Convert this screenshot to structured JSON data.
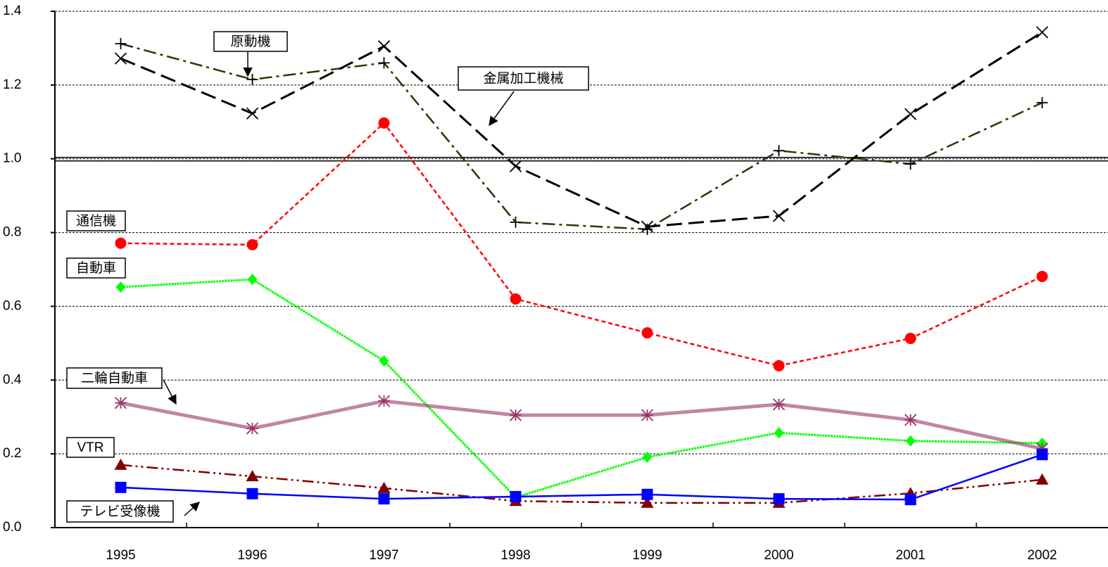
{
  "chart_data": {
    "type": "line",
    "categories": [
      "1995",
      "1996",
      "1997",
      "1998",
      "1999",
      "2000",
      "2001",
      "2002"
    ],
    "series": [
      {
        "name": "原動機",
        "color": "#333300",
        "values": [
          1.312,
          1.215,
          1.26,
          0.828,
          0.809,
          1.022,
          0.986,
          1.152
        ]
      },
      {
        "name": "金属加工機械",
        "color": "#000000",
        "values": [
          1.272,
          1.123,
          1.305,
          0.98,
          0.816,
          0.845,
          1.121,
          1.343
        ]
      },
      {
        "name": "通信機",
        "color": "#ff0000",
        "values": [
          0.771,
          0.767,
          1.097,
          0.62,
          0.528,
          0.439,
          0.513,
          0.681
        ]
      },
      {
        "name": "自動車",
        "color": "#00ff00",
        "values": [
          0.652,
          0.673,
          0.452,
          0.082,
          0.191,
          0.257,
          0.235,
          0.229
        ]
      },
      {
        "name": "二輪自動車",
        "color": "#993366",
        "values": [
          0.338,
          0.269,
          0.343,
          0.305,
          0.305,
          0.334,
          0.292,
          0.214
        ]
      },
      {
        "name": "VTR",
        "color": "#800000",
        "values": [
          0.17,
          0.139,
          0.107,
          0.072,
          0.067,
          0.067,
          0.093,
          0.13
        ]
      },
      {
        "name": "テレビ受像機",
        "color": "#0000ff",
        "values": [
          0.109,
          0.092,
          0.078,
          0.084,
          0.09,
          0.078,
          0.076,
          0.198
        ]
      }
    ],
    "ylim": [
      0,
      1.4
    ],
    "yticks": [
      {
        "value": 0,
        "label": "0.0"
      },
      {
        "value": 0.2,
        "label": "0.2"
      },
      {
        "value": 0.4,
        "label": "0.4"
      },
      {
        "value": 0.6,
        "label": "0.6"
      },
      {
        "value": 0.8,
        "label": "0.8"
      },
      {
        "value": 1,
        "label": "1.0"
      },
      {
        "value": 1.2,
        "label": "1.2"
      },
      {
        "value": 1.4,
        "label": "1.4"
      }
    ],
    "reference_line": 1,
    "grid": true
  }
}
